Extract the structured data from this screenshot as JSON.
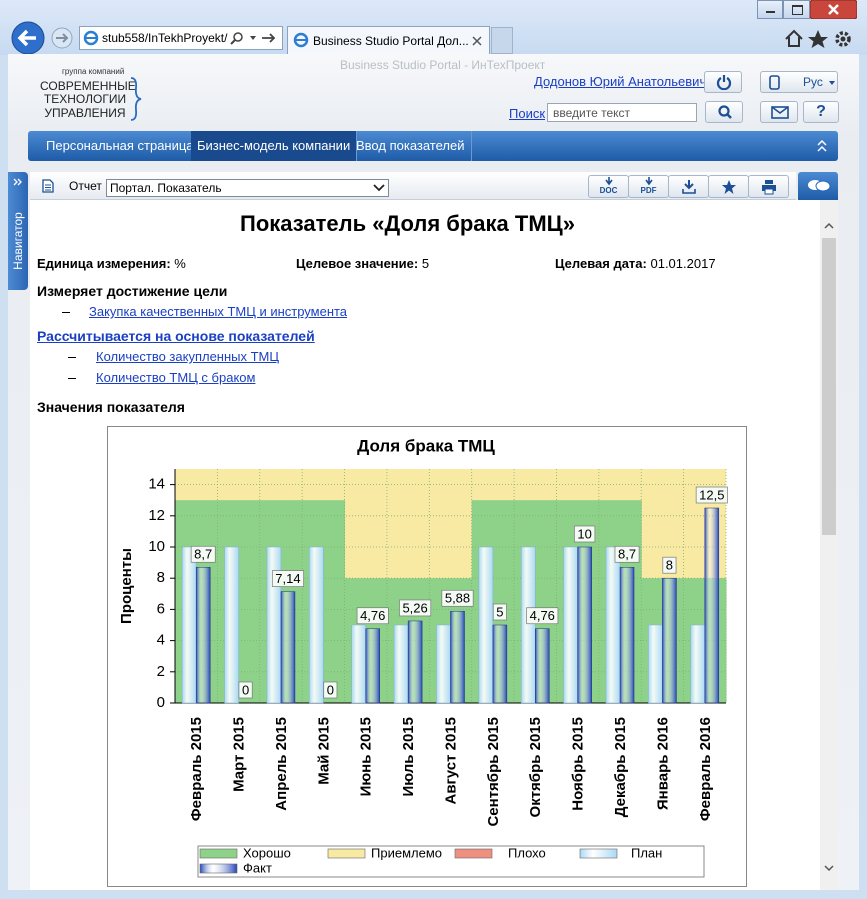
{
  "browser": {
    "address": "stub558/InTekhProyekt/",
    "tab_title": "Business Studio Portal Дол...",
    "window_title": "Business Studio Portal - ИнТехПроект"
  },
  "header": {
    "logo_small": "группа компаний",
    "logo_lines": [
      "СОВРЕМЕННЫЕ",
      "ТЕХНОЛОГИИ",
      "УПРАВЛЕНИЯ"
    ],
    "user": "Додонов Юрий Анатольевич",
    "language": "Рус",
    "search_link": "Поиск",
    "search_placeholder": "введите текст",
    "help": "?"
  },
  "nav": {
    "items": [
      "Персональная страница",
      "Бизнес-модель компании",
      "Ввод показателей"
    ],
    "active": 1
  },
  "side_tab": "Навигатор",
  "toolbar": {
    "report_label": "Отчет",
    "report_value": "Портал. Показатель",
    "buttons": [
      "DOC",
      "PDF"
    ]
  },
  "report": {
    "title": "Показатель «Доля брака ТМЦ»",
    "fields": [
      {
        "label": "Единица измерения:",
        "value": "%"
      },
      {
        "label": "Целевое значение:",
        "value": 5
      },
      {
        "label": "Целевая дата:",
        "value": "01.01.2017"
      }
    ],
    "goal_heading": "Измеряет достижение цели",
    "goals": [
      "Закупка качественных ТМЦ и инструмента"
    ],
    "based_heading": "Рассчитывается на основе показателей",
    "based": [
      "Количество закупленных ТМЦ",
      "Количество ТМЦ с браком"
    ],
    "values_heading": "Значения показателя"
  },
  "chart_data": {
    "type": "bar",
    "title": "Доля брака ТМЦ",
    "y_label": "Проценты",
    "categories": [
      "Февраль 2015",
      "Март 2015",
      "Апрель 2015",
      "Май 2015",
      "Июнь 2015",
      "Июль 2015",
      "Август 2015",
      "Сентябрь 2015",
      "Октябрь 2015",
      "Ноябрь 2015",
      "Декабрь 2015",
      "Январь 2016",
      "Февраль 2016"
    ],
    "ylim": [
      0,
      15
    ],
    "yticks": [
      0,
      2,
      4,
      6,
      8,
      10,
      12,
      14
    ],
    "grid": true,
    "zones": [
      {
        "name": "Хорошо",
        "color": "#8ed28a",
        "values": [
          13,
          13,
          13,
          13,
          8,
          8,
          8,
          13,
          13,
          13,
          13,
          8,
          8
        ]
      },
      {
        "name": "Приемлемо",
        "color": "#f8e9a3"
      },
      {
        "name": "Плохо",
        "color": "#ee8f80"
      }
    ],
    "series": [
      {
        "name": "План",
        "color": "#a9d8f5",
        "values": [
          10,
          10,
          10,
          10,
          5,
          5,
          5,
          10,
          10,
          10,
          10,
          5,
          5
        ]
      },
      {
        "name": "Факт",
        "color": "#2346b8",
        "values": [
          8.7,
          0,
          7.14,
          0,
          4.76,
          5.26,
          5.88,
          5,
          4.76,
          10,
          8.7,
          8,
          12.5
        ],
        "value_labels": [
          "8,7",
          "0",
          "7,14",
          "0",
          "4,76",
          "5,26",
          "5,88",
          "5",
          "4,76",
          "10",
          "8,7",
          "8",
          "12,5"
        ]
      }
    ]
  }
}
